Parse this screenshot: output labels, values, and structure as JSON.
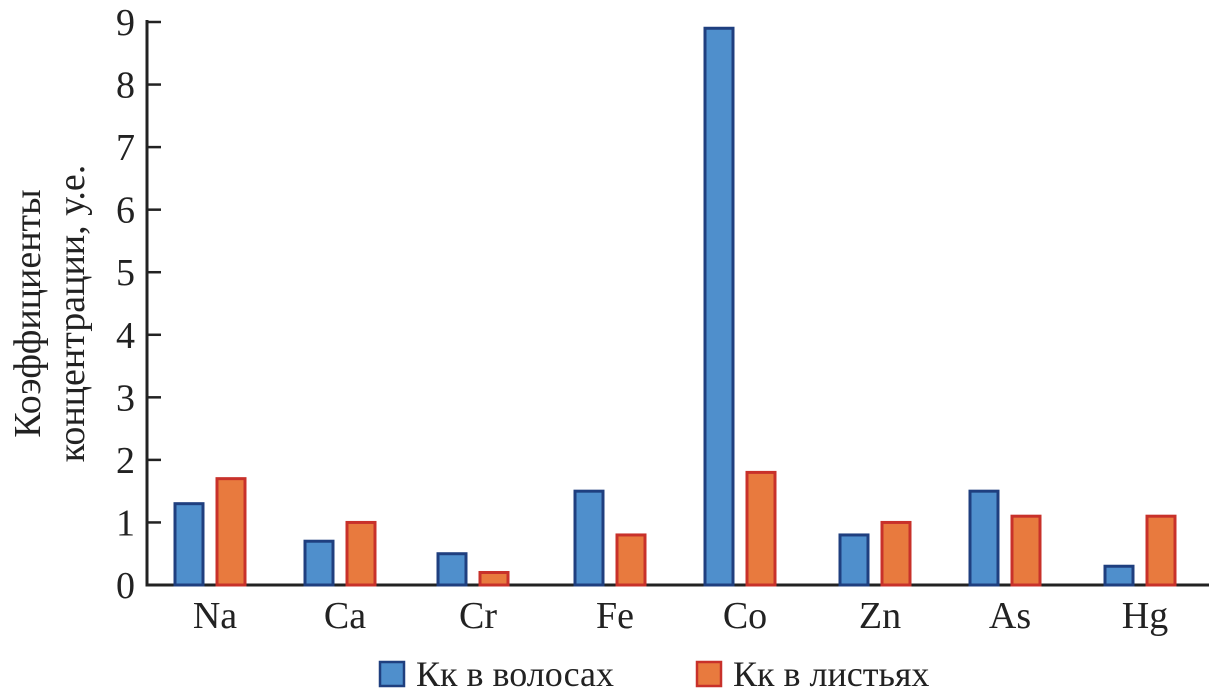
{
  "chart_data": {
    "type": "bar",
    "title": "",
    "xlabel": "",
    "ylabel_lines": [
      "Коэффициенты",
      "концентрации, у.е."
    ],
    "ylim": [
      0,
      9
    ],
    "yticks": [
      0,
      1,
      2,
      3,
      4,
      5,
      6,
      7,
      8,
      9
    ],
    "grid": false,
    "legend_placement": "bottom",
    "categories": [
      "Na",
      "Ca",
      "Cr",
      "Fe",
      "Co",
      "Zn",
      "As",
      "Hg"
    ],
    "series": [
      {
        "name": "Кк в волосах",
        "color": "#4f8fcc",
        "edge": "#1f3f7f",
        "values": [
          1.3,
          0.7,
          0.5,
          1.5,
          8.9,
          0.8,
          1.5,
          0.3
        ]
      },
      {
        "name": "Кк в листьях",
        "color": "#e87a3e",
        "edge": "#c8312a",
        "values": [
          1.7,
          1.0,
          0.2,
          0.8,
          1.8,
          1.0,
          1.1,
          1.1
        ]
      }
    ]
  }
}
